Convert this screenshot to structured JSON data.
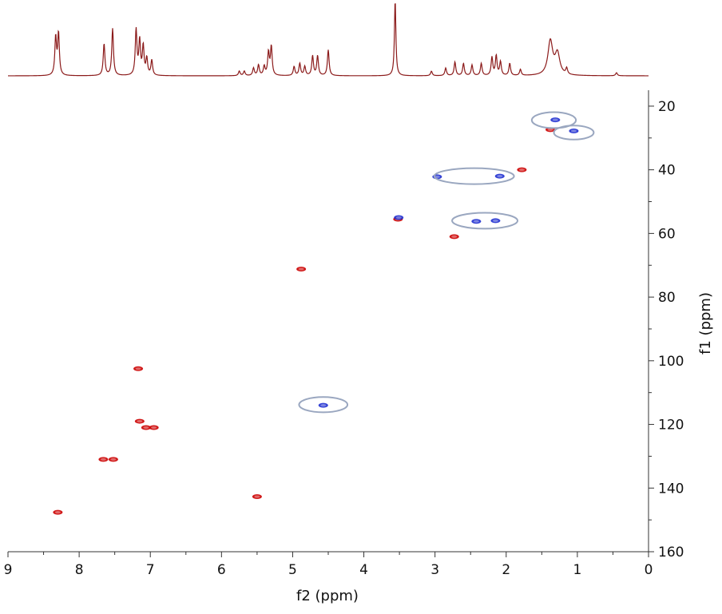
{
  "chart_data": {
    "type": "scatter",
    "title": "",
    "xlabel": "f2 (ppm)",
    "ylabel": "f1 (ppm)",
    "xlim": [
      9,
      0
    ],
    "ylim": [
      15,
      160
    ],
    "x_reversed": true,
    "y_inverted": true,
    "x_ticks": [
      "9",
      "8",
      "7",
      "6",
      "5",
      "4",
      "3",
      "2",
      "1",
      "0"
    ],
    "y_ticks": [
      "20",
      "40",
      "60",
      "80",
      "100",
      "120",
      "140",
      "160"
    ],
    "colors": {
      "spectrum": "#8b1a1a",
      "positive": "#cc0000",
      "negative": "#1f2fd0",
      "highlight": "#9aa7c0"
    },
    "proton_spectrum_peaks": [
      {
        "ppm": 8.33,
        "height": 0.5
      },
      {
        "ppm": 8.29,
        "height": 0.55
      },
      {
        "ppm": 7.65,
        "height": 0.42
      },
      {
        "ppm": 7.53,
        "height": 0.62
      },
      {
        "ppm": 7.2,
        "height": 0.6
      },
      {
        "ppm": 7.15,
        "height": 0.45
      },
      {
        "ppm": 7.1,
        "height": 0.38
      },
      {
        "ppm": 7.05,
        "height": 0.22
      },
      {
        "ppm": 6.98,
        "height": 0.2
      },
      {
        "ppm": 5.75,
        "height": 0.06
      },
      {
        "ppm": 5.68,
        "height": 0.06
      },
      {
        "ppm": 5.55,
        "height": 0.1
      },
      {
        "ppm": 5.48,
        "height": 0.14
      },
      {
        "ppm": 5.4,
        "height": 0.12
      },
      {
        "ppm": 5.34,
        "height": 0.3
      },
      {
        "ppm": 5.3,
        "height": 0.38
      },
      {
        "ppm": 4.98,
        "height": 0.12
      },
      {
        "ppm": 4.9,
        "height": 0.16
      },
      {
        "ppm": 4.83,
        "height": 0.12
      },
      {
        "ppm": 4.72,
        "height": 0.26
      },
      {
        "ppm": 4.65,
        "height": 0.26
      },
      {
        "ppm": 4.5,
        "height": 0.34
      },
      {
        "ppm": 3.56,
        "height": 1.0
      },
      {
        "ppm": 3.05,
        "height": 0.06
      },
      {
        "ppm": 2.85,
        "height": 0.1
      },
      {
        "ppm": 2.72,
        "height": 0.18
      },
      {
        "ppm": 2.6,
        "height": 0.16
      },
      {
        "ppm": 2.48,
        "height": 0.14
      },
      {
        "ppm": 2.35,
        "height": 0.16
      },
      {
        "ppm": 2.2,
        "height": 0.24
      },
      {
        "ppm": 2.14,
        "height": 0.26
      },
      {
        "ppm": 2.08,
        "height": 0.18
      },
      {
        "ppm": 1.95,
        "height": 0.16
      },
      {
        "ppm": 1.8,
        "height": 0.08
      },
      {
        "ppm": 1.38,
        "height": 0.45
      },
      {
        "ppm": 1.28,
        "height": 0.28
      },
      {
        "ppm": 1.15,
        "height": 0.08
      },
      {
        "ppm": 0.45,
        "height": 0.04
      }
    ],
    "series": [
      {
        "name": "",
        "sign": "positive",
        "points": [
          {
            "x": 8.3,
            "y": 147.6
          },
          {
            "x": 7.66,
            "y": 131.0
          },
          {
            "x": 7.52,
            "y": 131.0
          },
          {
            "x": 7.17,
            "y": 102.5
          },
          {
            "x": 7.15,
            "y": 119.0
          },
          {
            "x": 7.06,
            "y": 121.0
          },
          {
            "x": 6.95,
            "y": 121.0
          },
          {
            "x": 5.5,
            "y": 142.7
          },
          {
            "x": 4.88,
            "y": 71.2
          },
          {
            "x": 3.52,
            "y": 55.5
          },
          {
            "x": 2.73,
            "y": 61.0
          },
          {
            "x": 1.78,
            "y": 40.0
          },
          {
            "x": 1.38,
            "y": 27.4
          }
        ]
      },
      {
        "name": "",
        "sign": "negative",
        "points": [
          {
            "x": 4.57,
            "y": 114.0
          },
          {
            "x": 3.51,
            "y": 55.0
          },
          {
            "x": 2.97,
            "y": 42.2
          },
          {
            "x": 2.09,
            "y": 42.0
          },
          {
            "x": 2.42,
            "y": 56.2
          },
          {
            "x": 2.15,
            "y": 56.0
          },
          {
            "x": 1.31,
            "y": 24.3
          },
          {
            "x": 1.05,
            "y": 27.8
          }
        ]
      }
    ],
    "highlight_ellipses": [
      {
        "cx": 4.57,
        "cy": 113.8,
        "rx_ppm": 0.34,
        "ry_ppm": 2.4
      },
      {
        "cx": 2.45,
        "cy": 42.0,
        "rx_ppm": 0.56,
        "ry_ppm": 2.5
      },
      {
        "cx": 2.3,
        "cy": 56.0,
        "rx_ppm": 0.46,
        "ry_ppm": 2.5
      },
      {
        "cx": 1.33,
        "cy": 24.4,
        "rx_ppm": 0.31,
        "ry_ppm": 2.5
      },
      {
        "cx": 1.05,
        "cy": 28.3,
        "rx_ppm": 0.28,
        "ry_ppm": 2.2
      }
    ]
  }
}
